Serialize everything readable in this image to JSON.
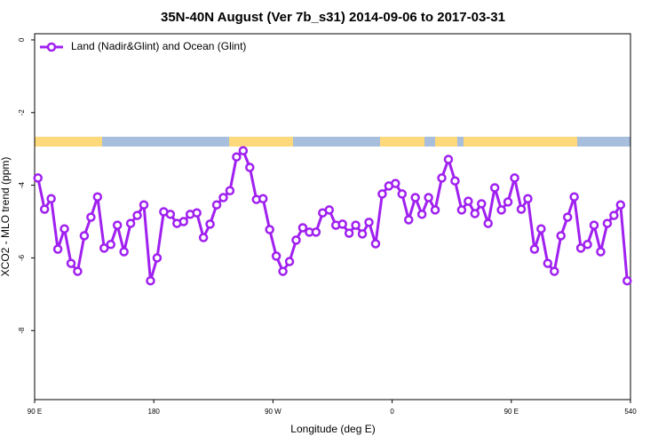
{
  "chart_data": {
    "type": "line",
    "title": "35N-40N August (Ver 7b_s31)   2014-09-06 to 2017-03-31",
    "x_label": "Longitude (deg E)",
    "y_label": "XCO2 - MLO trend (ppm)",
    "legend": "top-left",
    "xlim": [
      90,
      540
    ],
    "ylim": [
      -9.9,
      0.17
    ],
    "xticks": [
      {
        "value": 90,
        "label": "90 E"
      },
      180,
      {
        "value": 270,
        "label": "90 W"
      },
      {
        "value": 360,
        "label": "0"
      },
      {
        "value": 450,
        "label": "90 E"
      },
      540
    ],
    "yticks": [
      0,
      -2,
      -4,
      -6,
      -8
    ],
    "x": [
      92.5,
      97.5,
      102.5,
      107.5,
      112.5,
      117.5,
      122.5,
      127.5,
      132.5,
      137.5,
      142.5,
      147.5,
      152.5,
      157.5,
      162.5,
      167.5,
      172.5,
      177.5,
      182.5,
      187.5,
      192.5,
      197.5,
      202.5,
      207.5,
      212.5,
      217.5,
      222.5,
      227.5,
      232.5,
      237.5,
      242.5,
      247.5,
      252.5,
      257.5,
      262.5,
      267.5,
      272.5,
      277.5,
      282.5,
      287.5,
      292.5,
      297.5,
      302.5,
      307.5,
      312.5,
      317.5,
      322.5,
      327.5,
      332.5,
      337.5,
      342.5,
      347.5,
      352.5,
      357.5,
      362.5,
      367.5,
      372.5,
      377.5,
      382.5,
      387.5,
      392.5,
      397.5,
      402.5,
      407.5,
      412.5,
      417.5,
      422.5,
      427.5,
      432.5,
      437.5,
      442.5,
      447.5,
      452.5,
      457.5,
      462.5,
      467.5,
      472.5,
      477.5,
      482.5,
      487.5,
      492.5,
      497.5,
      502.5,
      507.5,
      512.5,
      517.5,
      522.5,
      527.5,
      532.5,
      537.5
    ],
    "series": [
      {
        "name": "Land (Nadir&Glint) and Ocean (Glint)",
        "color": "#a020f0",
        "values": [
          -3.8,
          -4.66,
          -4.37,
          -5.76,
          -5.2,
          -6.15,
          -6.37,
          -5.39,
          -4.88,
          -4.32,
          -5.73,
          -5.63,
          -5.1,
          -5.83,
          -5.05,
          -4.83,
          -4.54,
          -6.63,
          -6.0,
          -4.73,
          -4.8,
          -5.05,
          -5.0,
          -4.8,
          -4.76,
          -5.44,
          -5.07,
          -4.54,
          -4.34,
          -4.15,
          -3.22,
          -3.05,
          -3.51,
          -4.39,
          -4.37,
          -5.22,
          -5.95,
          -6.37,
          -6.1,
          -5.51,
          -5.17,
          -5.29,
          -5.29,
          -4.76,
          -4.68,
          -5.1,
          -5.07,
          -5.32,
          -5.1,
          -5.34,
          -5.02,
          -5.61,
          -4.24,
          -4.02,
          -3.95,
          -4.24,
          -4.95,
          -4.34,
          -4.8,
          -4.34,
          -4.68,
          -3.8,
          -3.29,
          -3.88,
          -4.68,
          -4.44,
          -4.78,
          -4.51,
          -5.05,
          -4.07,
          -4.68,
          -4.46,
          -3.8,
          -4.66,
          -4.37,
          -5.76,
          -5.2,
          -6.15,
          -6.37,
          -5.39,
          -4.88,
          -4.32,
          -5.73,
          -5.63,
          -5.1,
          -5.83,
          -5.05,
          -4.83,
          -4.54,
          -6.63
        ]
      }
    ]
  }
}
